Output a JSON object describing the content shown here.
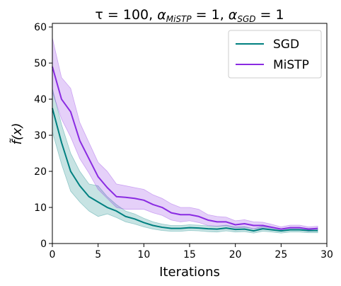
{
  "chart_data": {
    "type": "line",
    "title": "τ = 100, α_MiSTP = 1, α_SGD = 1",
    "title_parts": {
      "tau": "τ = 100, ",
      "alpha_a": "α",
      "alpha_a_sub": "MiSTP",
      "alpha_a_val": " = 1, ",
      "alpha_b": "α",
      "alpha_b_sub": "SGD",
      "alpha_b_val": " = 1"
    },
    "xlabel": "Iterations",
    "ylabel": "f̃(x)",
    "xlim": [
      0,
      30
    ],
    "ylim": [
      0,
      61
    ],
    "xticks": [
      0,
      5,
      10,
      15,
      20,
      25,
      30
    ],
    "yticks": [
      0,
      10,
      20,
      30,
      40,
      50,
      60
    ],
    "grid": false,
    "legend_position": "top-right",
    "x": [
      0,
      1,
      2,
      3,
      4,
      5,
      6,
      7,
      8,
      9,
      10,
      11,
      12,
      13,
      14,
      15,
      16,
      17,
      18,
      19,
      20,
      21,
      22,
      23,
      24,
      25,
      26,
      27,
      28,
      29
    ],
    "series": [
      {
        "name": "SGD",
        "color": "#008080",
        "values": [
          37.5,
          28.0,
          20.0,
          16.0,
          13.0,
          11.5,
          10.0,
          9.0,
          7.5,
          6.8,
          5.8,
          5.0,
          4.5,
          4.2,
          4.2,
          4.4,
          4.3,
          4.1,
          4.0,
          4.3,
          3.9,
          4.0,
          3.5,
          4.1,
          3.8,
          3.5,
          3.8,
          3.8,
          3.6,
          3.6
        ],
        "lower": [
          31.0,
          22.0,
          14.5,
          11.5,
          9.0,
          7.5,
          8.2,
          7.2,
          6.0,
          5.4,
          4.6,
          4.0,
          3.6,
          3.4,
          3.4,
          3.6,
          3.5,
          3.3,
          3.2,
          3.5,
          3.2,
          3.3,
          2.9,
          3.4,
          3.2,
          2.9,
          3.2,
          3.2,
          3.0,
          3.0
        ],
        "upper": [
          43.0,
          33.0,
          25.0,
          20.0,
          16.5,
          16.0,
          13.0,
          10.8,
          9.0,
          8.2,
          7.0,
          6.0,
          5.4,
          5.0,
          5.0,
          5.2,
          5.1,
          4.9,
          4.8,
          5.1,
          4.6,
          4.7,
          4.1,
          4.8,
          4.4,
          4.1,
          4.4,
          4.4,
          4.2,
          4.2
        ]
      },
      {
        "name": "MiSTP",
        "color": "#8a2be2",
        "values": [
          49.0,
          40.0,
          36.5,
          28.5,
          23.5,
          18.5,
          15.5,
          13.0,
          12.8,
          12.5,
          12.0,
          10.8,
          10.0,
          8.5,
          8.0,
          8.0,
          7.5,
          6.5,
          6.0,
          6.0,
          5.2,
          5.5,
          5.0,
          5.0,
          4.5,
          4.0,
          4.4,
          4.4,
          4.0,
          4.2
        ],
        "lower": [
          42.0,
          34.5,
          29.5,
          23.5,
          19.5,
          15.0,
          12.5,
          10.0,
          9.5,
          9.5,
          9.5,
          8.5,
          7.8,
          6.5,
          6.0,
          6.3,
          5.8,
          5.0,
          4.8,
          4.9,
          4.3,
          4.5,
          4.1,
          4.2,
          3.8,
          3.4,
          3.8,
          3.8,
          3.4,
          3.6
        ],
        "upper": [
          57.0,
          46.0,
          43.0,
          33.5,
          28.0,
          22.5,
          20.0,
          16.5,
          16.0,
          15.5,
          15.0,
          13.5,
          12.5,
          11.0,
          10.0,
          10.0,
          9.5,
          8.0,
          7.5,
          7.3,
          6.3,
          6.6,
          6.0,
          5.9,
          5.3,
          4.6,
          5.1,
          5.1,
          4.6,
          4.8
        ]
      }
    ]
  }
}
